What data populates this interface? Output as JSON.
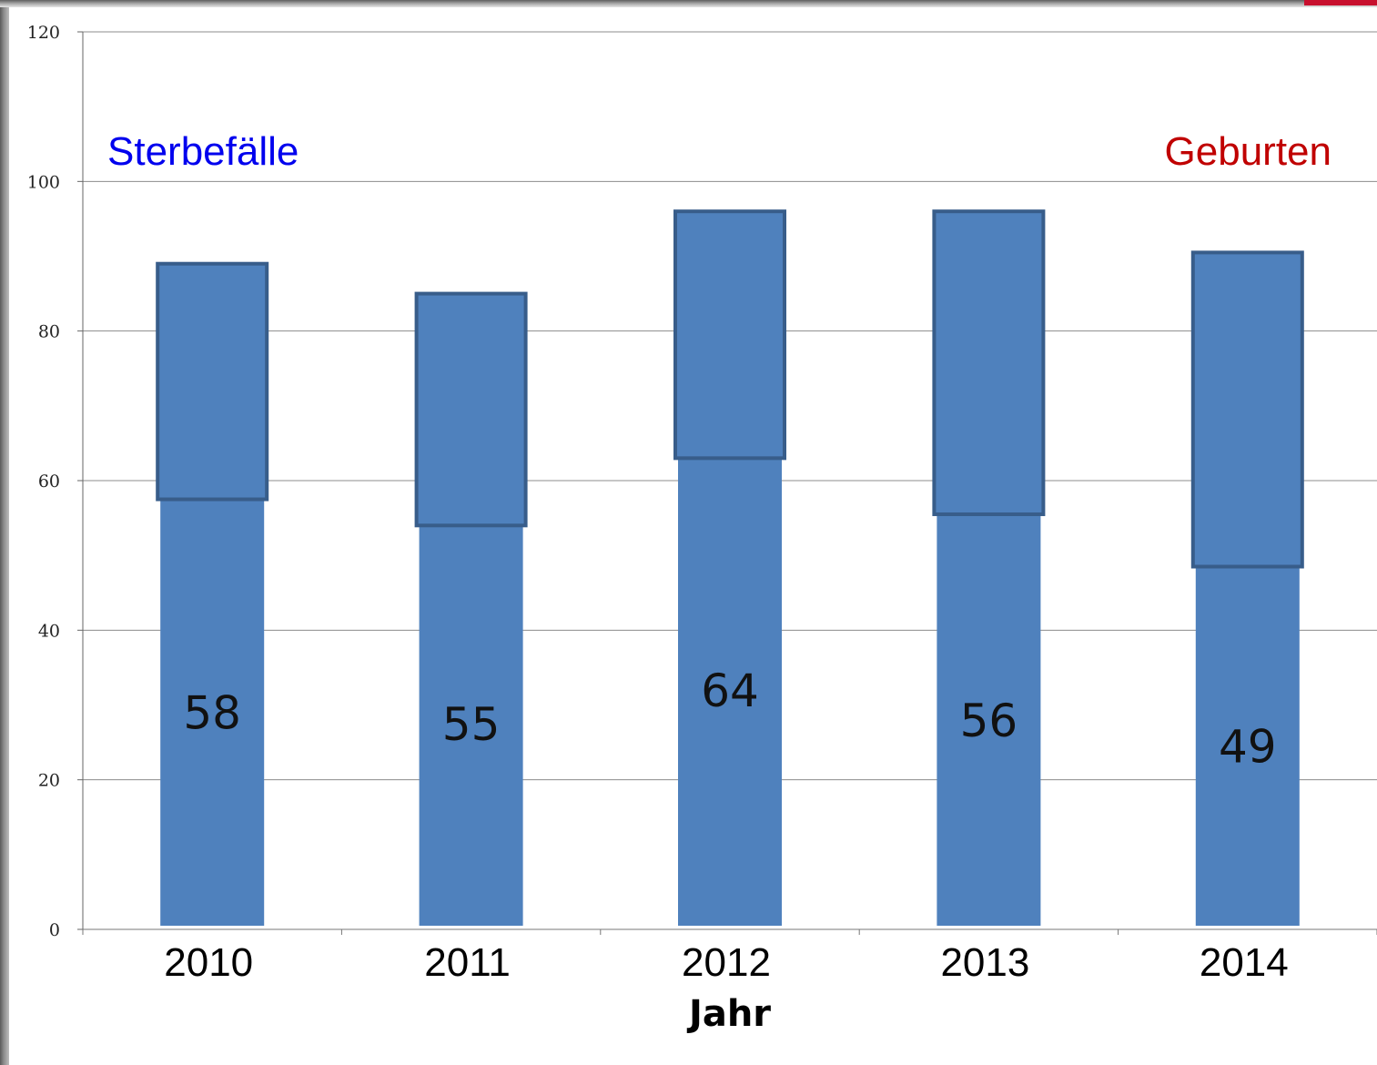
{
  "colors": {
    "bar_fill": "#4f81bd",
    "bar_outline": "#385d8a",
    "gridline": "#8c8c8c",
    "sterbefaelle_text": "#0000ee",
    "geburten_text": "#c00000"
  },
  "legend": {
    "left_label": "Sterbefälle",
    "right_label": "Geburten"
  },
  "chart_data": {
    "type": "bar",
    "xlabel": "Jahr",
    "ylabel": "",
    "ylim": [
      0,
      120
    ],
    "yticks": [
      "0",
      "20",
      "40",
      "60",
      "80",
      "100",
      "120"
    ],
    "grid": true,
    "categories": [
      "2010",
      "2011",
      "2012",
      "2013",
      "2014"
    ],
    "series": [
      {
        "name": "Sterbefälle",
        "values": [
          58,
          55,
          64,
          56,
          49
        ],
        "labels": [
          "58",
          "55",
          "64",
          "56",
          "49"
        ]
      },
      {
        "name": "Geburten",
        "low": [
          57.5,
          54,
          63,
          55.5,
          48.5
        ],
        "high": [
          89,
          85,
          96,
          96,
          90.5
        ]
      }
    ]
  }
}
